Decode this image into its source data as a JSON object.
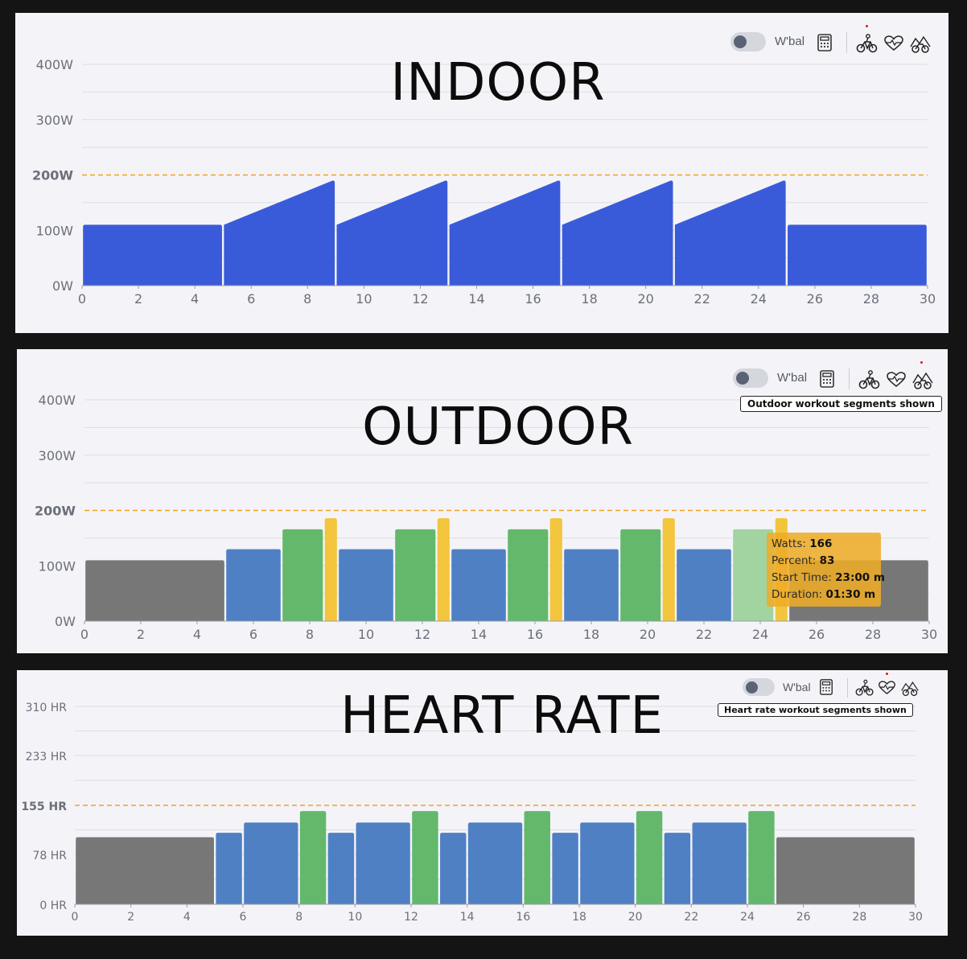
{
  "chart_data": [
    {
      "title": "INDOOR",
      "type": "area",
      "xlim": [
        0,
        30
      ],
      "ylim": [
        0,
        400
      ],
      "x_ticks": [
        "0",
        "2",
        "4",
        "6",
        "8",
        "10",
        "12",
        "14",
        "16",
        "18",
        "20",
        "22",
        "24",
        "26",
        "28",
        "30"
      ],
      "y_ticks": [
        {
          "value": 0,
          "label": "0W"
        },
        {
          "value": 100,
          "label": "100W"
        },
        {
          "value": 200,
          "label": "200W",
          "bold": true
        },
        {
          "value": 300,
          "label": "300W"
        },
        {
          "value": 400,
          "label": "400W"
        }
      ],
      "threshold": 200,
      "segments": [
        {
          "start": 0,
          "end": 5,
          "from": 110,
          "to": 110,
          "color": "#3a5bd9"
        },
        {
          "start": 5,
          "end": 9,
          "from": 110,
          "to": 190,
          "color": "#3a5bd9"
        },
        {
          "start": 9,
          "end": 13,
          "from": 110,
          "to": 190,
          "color": "#3a5bd9"
        },
        {
          "start": 13,
          "end": 17,
          "from": 110,
          "to": 190,
          "color": "#3a5bd9"
        },
        {
          "start": 17,
          "end": 21,
          "from": 110,
          "to": 190,
          "color": "#3a5bd9"
        },
        {
          "start": 21,
          "end": 25,
          "from": 110,
          "to": 190,
          "color": "#3a5bd9"
        },
        {
          "start": 25,
          "end": 30,
          "from": 110,
          "to": 110,
          "color": "#3a5bd9"
        }
      ]
    },
    {
      "title": "OUTDOOR",
      "type": "bar",
      "xlim": [
        0,
        30
      ],
      "ylim": [
        0,
        400
      ],
      "x_ticks": [
        "0",
        "2",
        "4",
        "6",
        "8",
        "10",
        "12",
        "14",
        "16",
        "18",
        "20",
        "22",
        "24",
        "26",
        "28",
        "30"
      ],
      "y_ticks": [
        {
          "value": 0,
          "label": "0W"
        },
        {
          "value": 100,
          "label": "100W"
        },
        {
          "value": 200,
          "label": "200W",
          "bold": true
        },
        {
          "value": 300,
          "label": "300W"
        },
        {
          "value": 400,
          "label": "400W"
        }
      ],
      "threshold": 200,
      "segments": [
        {
          "start": 0,
          "end": 5,
          "from": 110,
          "to": 110,
          "color": "#777777"
        },
        {
          "start": 5,
          "end": 7,
          "from": 130,
          "to": 130,
          "color": "#4f80c4"
        },
        {
          "start": 7,
          "end": 8.5,
          "from": 166,
          "to": 166,
          "color": "#64b86c"
        },
        {
          "start": 8.5,
          "end": 9,
          "from": 186,
          "to": 186,
          "color": "#f2c53d"
        },
        {
          "start": 9,
          "end": 11,
          "from": 130,
          "to": 130,
          "color": "#4f80c4"
        },
        {
          "start": 11,
          "end": 12.5,
          "from": 166,
          "to": 166,
          "color": "#64b86c"
        },
        {
          "start": 12.5,
          "end": 13,
          "from": 186,
          "to": 186,
          "color": "#f2c53d"
        },
        {
          "start": 13,
          "end": 15,
          "from": 130,
          "to": 130,
          "color": "#4f80c4"
        },
        {
          "start": 15,
          "end": 16.5,
          "from": 166,
          "to": 166,
          "color": "#64b86c"
        },
        {
          "start": 16.5,
          "end": 17,
          "from": 186,
          "to": 186,
          "color": "#f2c53d"
        },
        {
          "start": 17,
          "end": 19,
          "from": 130,
          "to": 130,
          "color": "#4f80c4"
        },
        {
          "start": 19,
          "end": 20.5,
          "from": 166,
          "to": 166,
          "color": "#64b86c"
        },
        {
          "start": 20.5,
          "end": 21,
          "from": 186,
          "to": 186,
          "color": "#f2c53d"
        },
        {
          "start": 21,
          "end": 23,
          "from": 130,
          "to": 130,
          "color": "#4f80c4"
        },
        {
          "start": 23,
          "end": 24.5,
          "from": 166,
          "to": 166,
          "color": "#a2d4a2"
        },
        {
          "start": 24.5,
          "end": 25,
          "from": 186,
          "to": 186,
          "color": "#f2c53d"
        },
        {
          "start": 25,
          "end": 30,
          "from": 110,
          "to": 110,
          "color": "#777777"
        }
      ]
    },
    {
      "title": "HEART RATE",
      "type": "bar",
      "xlim": [
        0,
        30
      ],
      "ylim": [
        0,
        310
      ],
      "x_ticks": [
        "0",
        "2",
        "4",
        "6",
        "8",
        "10",
        "12",
        "14",
        "16",
        "18",
        "20",
        "22",
        "24",
        "26",
        "28",
        "30"
      ],
      "y_ticks": [
        {
          "value": 0,
          "label": "0 HR"
        },
        {
          "value": 78,
          "label": "78 HR"
        },
        {
          "value": 155,
          "label": "155 HR",
          "bold": true
        },
        {
          "value": 233,
          "label": "233 HR"
        },
        {
          "value": 310,
          "label": "310 HR"
        }
      ],
      "threshold": 155,
      "segments": [
        {
          "start": 0,
          "end": 5,
          "from": 105,
          "to": 105,
          "color": "#777777"
        },
        {
          "start": 5,
          "end": 6,
          "from": 112,
          "to": 112,
          "color": "#4f80c4"
        },
        {
          "start": 6,
          "end": 8,
          "from": 128,
          "to": 128,
          "color": "#4f80c4"
        },
        {
          "start": 8,
          "end": 9,
          "from": 146,
          "to": 146,
          "color": "#64b86c"
        },
        {
          "start": 9,
          "end": 10,
          "from": 112,
          "to": 112,
          "color": "#4f80c4"
        },
        {
          "start": 10,
          "end": 12,
          "from": 128,
          "to": 128,
          "color": "#4f80c4"
        },
        {
          "start": 12,
          "end": 13,
          "from": 146,
          "to": 146,
          "color": "#64b86c"
        },
        {
          "start": 13,
          "end": 14,
          "from": 112,
          "to": 112,
          "color": "#4f80c4"
        },
        {
          "start": 14,
          "end": 16,
          "from": 128,
          "to": 128,
          "color": "#4f80c4"
        },
        {
          "start": 16,
          "end": 17,
          "from": 146,
          "to": 146,
          "color": "#64b86c"
        },
        {
          "start": 17,
          "end": 18,
          "from": 112,
          "to": 112,
          "color": "#4f80c4"
        },
        {
          "start": 18,
          "end": 20,
          "from": 128,
          "to": 128,
          "color": "#4f80c4"
        },
        {
          "start": 20,
          "end": 21,
          "from": 146,
          "to": 146,
          "color": "#64b86c"
        },
        {
          "start": 21,
          "end": 22,
          "from": 112,
          "to": 112,
          "color": "#4f80c4"
        },
        {
          "start": 22,
          "end": 24,
          "from": 128,
          "to": 128,
          "color": "#4f80c4"
        },
        {
          "start": 24,
          "end": 25,
          "from": 146,
          "to": 146,
          "color": "#64b86c"
        },
        {
          "start": 25,
          "end": 30,
          "from": 105,
          "to": 105,
          "color": "#777777"
        }
      ]
    }
  ],
  "panels": [
    {
      "title": "INDOOR",
      "wbal_label": "W'bal",
      "active_icon": "bike"
    },
    {
      "title": "OUTDOOR",
      "wbal_label": "W'bal",
      "active_icon": "outdoor",
      "tag": "Outdoor workout segments shown"
    },
    {
      "title": "HEART RATE",
      "wbal_label": "W'bal",
      "active_icon": "heart",
      "tag": "Heart rate workout segments shown"
    }
  ],
  "tooltip": {
    "watts_label": "Watts:",
    "watts_value": "166",
    "percent_label": "Percent:",
    "percent_value": "83",
    "start_label": "Start Time:",
    "start_value": "23:00 m",
    "duration_label": "Duration:",
    "duration_value": "01:30 m"
  },
  "colors": {
    "panel_bg": "#f4f4f8",
    "grid": "#dcdde3",
    "threshold": "#f0a020",
    "indoor": "#3a5bd9",
    "recovery": "#777777",
    "interval": "#4f80c4",
    "effort": "#64b86c",
    "peak": "#f2c53d"
  },
  "icons": [
    "calculator-icon",
    "bike-icon",
    "heartbeat-icon",
    "outdoor-bike-icon"
  ]
}
